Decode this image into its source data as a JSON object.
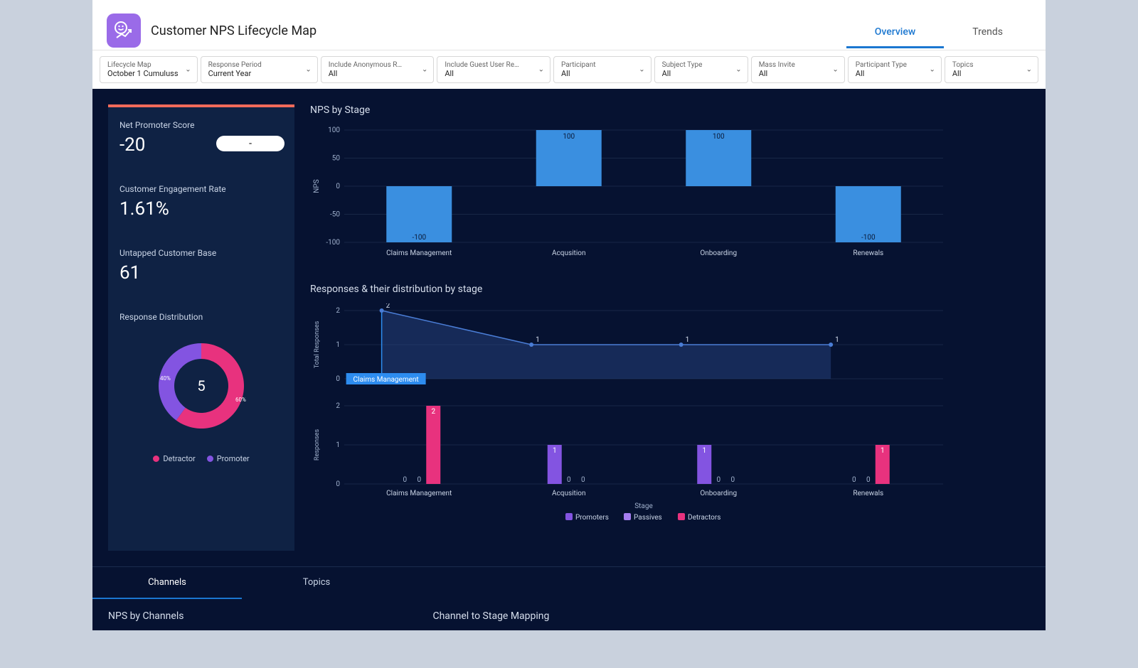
{
  "header": {
    "title": "Customer NPS Lifecycle Map",
    "tabs": [
      {
        "label": "Overview",
        "active": true
      },
      {
        "label": "Trends",
        "active": false
      }
    ]
  },
  "filters": [
    {
      "label": "Lifecycle Map",
      "value": "October 1 Cumuluss",
      "width": 1.05
    },
    {
      "label": "Response Period",
      "value": "Current Year",
      "width": 1.3
    },
    {
      "label": "Include Anonymous R…",
      "value": "All",
      "width": 1.25
    },
    {
      "label": "Include Guest User Re…",
      "value": "All",
      "width": 1.25
    },
    {
      "label": "Participant",
      "value": "All",
      "width": 1.05
    },
    {
      "label": "Subject Type",
      "value": "All",
      "width": 1.0
    },
    {
      "label": "Mass Invite",
      "value": "All",
      "width": 1.0
    },
    {
      "label": "Participant Type",
      "value": "All",
      "width": 1.0
    },
    {
      "label": "Topics",
      "value": "All",
      "width": 1.0
    }
  ],
  "left": {
    "nps": {
      "label": "Net Promoter Score",
      "value": "-20",
      "pill": "-"
    },
    "engagement": {
      "label": "Customer Engagement Rate",
      "value": "1.61%"
    },
    "untapped": {
      "label": "Untapped Customer Base",
      "value": "61"
    },
    "donut": {
      "title": "Response Distribution",
      "center_value": "5",
      "slices": [
        {
          "label": "Detractor",
          "pct": 60,
          "color": "#e8327e"
        },
        {
          "label": "Promoter",
          "pct": 40,
          "color": "#8354e1"
        }
      ],
      "pct_labels": {
        "detractor": "60%",
        "promoter": "40%"
      }
    }
  },
  "charts": {
    "nps_by_stage": {
      "title": "NPS by Stage",
      "ylabel": "NPS",
      "ylim": [
        -100,
        100
      ],
      "ytick_labels": [
        "-100",
        "-50",
        "0",
        "50",
        "100"
      ],
      "categories": [
        "Claims Management",
        "Acqusition",
        "Onboarding",
        "Renewals"
      ],
      "values": [
        -100,
        100,
        100,
        -100
      ],
      "bar_color": "#3a8fe0",
      "grid_color": "#2a3c5d",
      "label_fontsize": 10
    },
    "responses_line": {
      "title": "Responses & their distribution by stage",
      "ylabel": "Total Responses",
      "ylim": [
        0,
        2
      ],
      "ytick_labels": [
        "0",
        "1",
        "2"
      ],
      "categories": [
        "Claims Management",
        "Acqusition",
        "Onboarding",
        "Renewals"
      ],
      "values": [
        2,
        1,
        1,
        1
      ],
      "line_color": "#4a7dd6",
      "fill_color": "#2a4a8a",
      "fill_opacity": 0.45,
      "tooltip": {
        "text": "Claims Management",
        "bg": "#2d8cef"
      }
    },
    "responses_grouped": {
      "ylabel": "Responses",
      "xlabel": "Stage",
      "ylim": [
        0,
        2
      ],
      "ytick_labels": [
        "0",
        "1",
        "2"
      ],
      "categories": [
        "Claims Management",
        "Acqusition",
        "Onboarding",
        "Renewals"
      ],
      "series": [
        {
          "name": "Promoters",
          "color": "#8354e1",
          "values": [
            0,
            1,
            1,
            0
          ]
        },
        {
          "name": "Passives",
          "color": "#a57ef0",
          "values": [
            0,
            0,
            0,
            0
          ]
        },
        {
          "name": "Detractors",
          "color": "#e8327e",
          "values": [
            2,
            0,
            0,
            1
          ]
        }
      ]
    }
  },
  "bottom": {
    "tabs": [
      {
        "label": "Channels",
        "active": true
      },
      {
        "label": "Topics",
        "active": false
      }
    ],
    "panels": [
      {
        "title": "NPS by Channels"
      },
      {
        "title": "Channel to Stage Mapping"
      }
    ]
  },
  "colors": {
    "page_bg": "#061231",
    "panel_bg": "#0f2244",
    "accent_border": "#f26a5a",
    "text_light": "#d6deec"
  }
}
